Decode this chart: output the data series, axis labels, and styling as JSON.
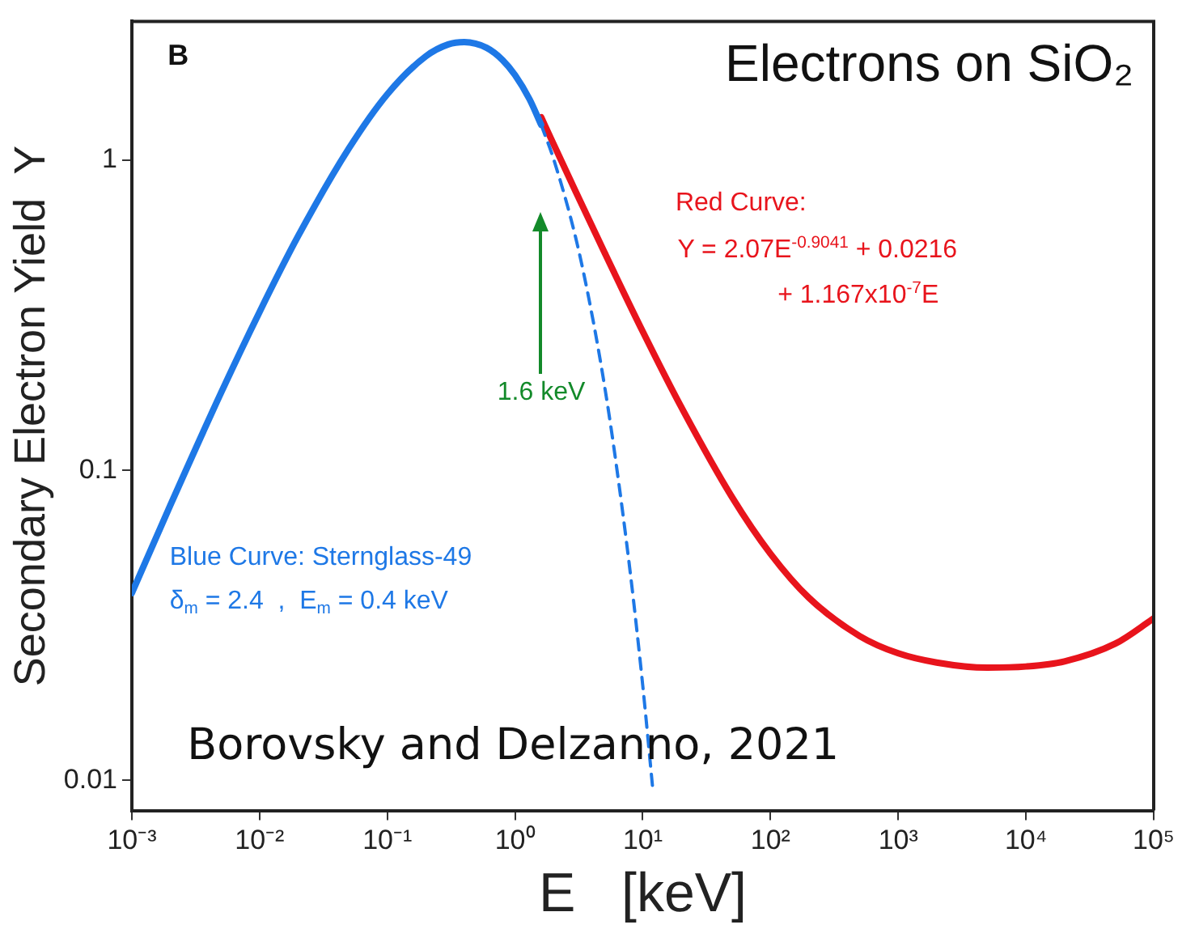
{
  "chart_data": {
    "type": "line",
    "title": "Electrons on SiO₂",
    "xlabel": "E   [keV]",
    "ylabel": "Secondary Electron Yield  Y",
    "log": "xy",
    "grid": false,
    "legend": false,
    "marker": "none",
    "line_style": "solid",
    "xlim": [
      0.001,
      100000
    ],
    "ylim": [
      0.008,
      2.8
    ],
    "xticks": [
      {
        "value": 0.001,
        "label": "10⁻³"
      },
      {
        "value": 0.01,
        "label": "10⁻²"
      },
      {
        "value": 0.1,
        "label": "10⁻¹"
      },
      {
        "value": 1,
        "label": "10⁰"
      },
      {
        "value": 10,
        "label": "10¹"
      },
      {
        "value": 100,
        "label": "10²"
      },
      {
        "value": 1000,
        "label": "10³"
      },
      {
        "value": 10000,
        "label": "10⁴"
      },
      {
        "value": 100000,
        "label": "10⁵"
      }
    ],
    "yticks": [
      0.01,
      0.1,
      1
    ],
    "series": [
      {
        "color": "#1e78e6",
        "x": [
          0.001,
          0.002,
          0.005,
          0.01,
          0.02,
          0.05,
          0.1,
          0.2,
          0.3,
          0.4,
          0.6,
          0.8,
          1,
          1.3,
          1.6
        ],
        "values": [
          0.0402,
          0.0771,
          0.178,
          0.324,
          0.568,
          1.09,
          1.63,
          2.16,
          2.36,
          2.4,
          2.3,
          2.1,
          1.88,
          1.57,
          1.3
        ]
      },
      {
        "color": "#1e78e6",
        "line_style": "dashed",
        "x": [
          1.6,
          2,
          3,
          4,
          5,
          6,
          8,
          10,
          12
        ],
        "values": [
          1.3,
          1.01,
          0.557,
          0.318,
          0.189,
          0.115,
          0.0464,
          0.0202,
          0.0093
        ]
      },
      {
        "color": "#e8141c",
        "x": [
          1.6,
          2,
          3,
          5,
          10,
          20,
          50,
          100,
          200,
          500,
          1000,
          2000,
          5000,
          10000,
          20000,
          50000,
          100000
        ],
        "values": [
          1.375,
          1.127,
          0.788,
          0.505,
          0.28,
          0.16,
          0.0819,
          0.0538,
          0.0388,
          0.0292,
          0.0257,
          0.024,
          0.0231,
          0.0233,
          0.0242,
          0.0276,
          0.0333
        ]
      }
    ],
    "annotations": [
      "B",
      "Red Curve:",
      "Y = 2.07E$^{-0.9041}$ + 0.0216",
      "+ 1.167x10$^{-7}$E",
      "Blue Curve: Sternglass-49",
      "δ$_{m}$ = 2.4  ,  E$_{m}$ = 0.4 keV",
      "Borovsky and Delzanno, 2021",
      "1.6 keV"
    ]
  }
}
